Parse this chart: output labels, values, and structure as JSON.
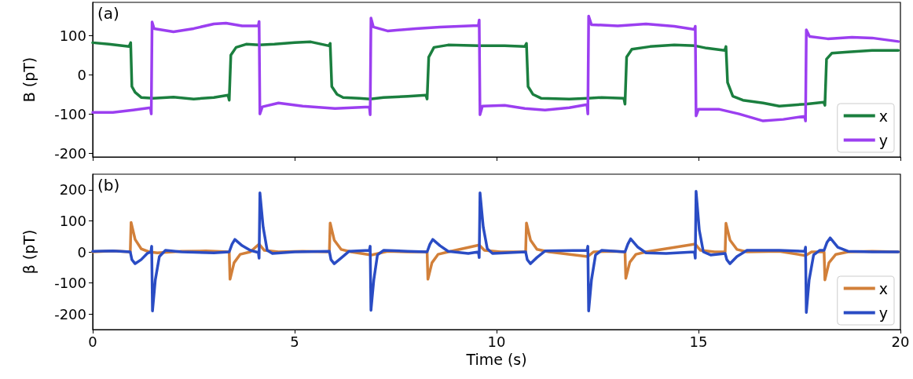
{
  "chart_data": [
    {
      "type": "line",
      "ylabel": "B (pT)",
      "annotations": [
        "(a)"
      ],
      "xlim": [
        0,
        20
      ],
      "xticks": [
        0,
        5,
        10,
        15,
        20
      ],
      "ylim": [
        -210,
        185
      ],
      "yticks": [
        -200,
        -100,
        0,
        100
      ],
      "tick_labels": "y",
      "legend": "bottom right",
      "marker": "none",
      "line_style": "solid",
      "series": [
        {
          "name": "x",
          "color": "#1b7f3f",
          "x": [
            0,
            0.4,
            0.9,
            0.94,
            0.97,
            1.05,
            1.2,
            1.5,
            2.0,
            2.5,
            3.0,
            3.35,
            3.38,
            3.42,
            3.55,
            3.8,
            4.12,
            4.5,
            5.0,
            5.4,
            5.85,
            5.88,
            5.92,
            6.05,
            6.2,
            6.6,
            6.87,
            7.2,
            7.8,
            8.25,
            8.28,
            8.32,
            8.45,
            8.8,
            9.57,
            10.2,
            10.7,
            10.74,
            10.78,
            10.9,
            11.1,
            11.8,
            12.26,
            12.6,
            13.15,
            13.18,
            13.22,
            13.35,
            13.8,
            14.4,
            14.92,
            15.2,
            15.65,
            15.68,
            15.72,
            15.85,
            16.1,
            16.6,
            17.0,
            17.65,
            18.1,
            18.13,
            18.17,
            18.3,
            18.7,
            19.3,
            19.95
          ],
          "values": [
            82,
            78,
            72,
            82,
            -30,
            -45,
            -58,
            -60,
            -57,
            -62,
            -58,
            -52,
            -65,
            50,
            70,
            78,
            76,
            78,
            82,
            84,
            74,
            80,
            -30,
            -50,
            -58,
            -60,
            -62,
            -58,
            -55,
            -52,
            -62,
            45,
            70,
            76,
            74,
            74,
            72,
            80,
            -30,
            -50,
            -60,
            -62,
            -60,
            -58,
            -60,
            -75,
            45,
            65,
            72,
            76,
            74,
            68,
            62,
            72,
            -20,
            -55,
            -65,
            -72,
            -80,
            -75,
            -70,
            -78,
            40,
            55,
            58,
            62,
            62
          ]
        },
        {
          "name": "y",
          "color": "#9b3ff0",
          "x": [
            0,
            0.5,
            1.0,
            1.43,
            1.45,
            1.47,
            1.52,
            2.0,
            2.5,
            3.0,
            3.3,
            3.7,
            4.1,
            4.12,
            4.14,
            4.2,
            4.6,
            5.2,
            6.0,
            6.85,
            6.87,
            6.89,
            6.95,
            7.3,
            8.0,
            8.6,
            9.55,
            9.57,
            9.59,
            9.65,
            10.2,
            10.7,
            11.2,
            11.8,
            12.24,
            12.26,
            12.28,
            12.35,
            13.0,
            13.7,
            14.4,
            14.9,
            14.92,
            14.94,
            15.0,
            15.5,
            16.0,
            16.6,
            17.1,
            17.63,
            17.65,
            17.67,
            17.75,
            18.2,
            18.8,
            19.3,
            19.95
          ],
          "values": [
            -96,
            -96,
            -90,
            -84,
            -100,
            135,
            118,
            110,
            118,
            130,
            132,
            125,
            125,
            136,
            -100,
            -82,
            -72,
            -80,
            -86,
            -82,
            -102,
            145,
            122,
            112,
            118,
            122,
            126,
            140,
            -102,
            -80,
            -78,
            -86,
            -90,
            -84,
            -76,
            -100,
            150,
            128,
            125,
            130,
            124,
            116,
            124,
            -105,
            -88,
            -88,
            -100,
            -118,
            -114,
            -106,
            -118,
            115,
            98,
            92,
            96,
            94,
            85
          ]
        }
      ]
    },
    {
      "type": "line",
      "ylabel": "β (pT)",
      "xlabel": "Time (s)",
      "annotations": [
        "(b)"
      ],
      "xlim": [
        0,
        20
      ],
      "xticks": [
        0,
        5,
        10,
        15,
        20
      ],
      "ylim": [
        -250,
        250
      ],
      "yticks": [
        -200,
        -100,
        0,
        100,
        200
      ],
      "legend": "bottom right",
      "marker": "none",
      "line_style": "solid",
      "series": [
        {
          "name": "x",
          "color": "#d2803a",
          "x": [
            0,
            0.5,
            0.93,
            0.95,
            1.05,
            1.2,
            1.4,
            1.6,
            2.2,
            2.8,
            3.38,
            3.4,
            3.5,
            3.65,
            3.9,
            4.12,
            4.25,
            4.6,
            5.2,
            5.86,
            5.88,
            5.98,
            6.15,
            6.4,
            6.9,
            7.3,
            7.8,
            8.28,
            8.3,
            8.4,
            8.55,
            8.8,
            9.57,
            9.7,
            10.1,
            10.72,
            10.74,
            10.84,
            11.0,
            11.3,
            12.26,
            12.4,
            12.9,
            13.18,
            13.2,
            13.3,
            13.45,
            13.7,
            14.92,
            15.05,
            15.4,
            15.66,
            15.68,
            15.78,
            15.95,
            16.2,
            17.0,
            17.65,
            17.8,
            18.11,
            18.13,
            18.23,
            18.4,
            18.7,
            19.3,
            19.95
          ],
          "values": [
            0,
            3,
            0,
            95,
            40,
            10,
            0,
            -3,
            2,
            3,
            0,
            -88,
            -35,
            -8,
            0,
            25,
            5,
            0,
            2,
            0,
            93,
            38,
            8,
            0,
            -10,
            2,
            0,
            0,
            -88,
            -35,
            -8,
            0,
            22,
            5,
            0,
            0,
            93,
            38,
            8,
            0,
            -15,
            0,
            2,
            0,
            -85,
            -33,
            -8,
            0,
            25,
            5,
            0,
            0,
            92,
            38,
            8,
            0,
            2,
            -12,
            0,
            0,
            -90,
            -35,
            -8,
            0,
            2,
            0
          ]
        },
        {
          "name": "y",
          "color": "#2a4cc4",
          "x": [
            0,
            0.5,
            0.93,
            0.97,
            1.05,
            1.2,
            1.35,
            1.44,
            1.46,
            1.48,
            1.55,
            1.65,
            1.8,
            2.2,
            3.0,
            3.38,
            3.45,
            3.52,
            3.7,
            3.9,
            4.1,
            4.12,
            4.14,
            4.22,
            4.32,
            4.45,
            5.0,
            5.86,
            5.9,
            5.98,
            6.15,
            6.35,
            6.85,
            6.87,
            6.89,
            6.96,
            7.05,
            7.2,
            7.8,
            8.28,
            8.35,
            8.42,
            8.6,
            8.8,
            9.3,
            9.55,
            9.57,
            9.59,
            9.67,
            9.77,
            9.9,
            10.72,
            10.76,
            10.84,
            11.0,
            11.2,
            12.24,
            12.26,
            12.28,
            12.35,
            12.45,
            12.6,
            13.18,
            13.25,
            13.32,
            13.5,
            13.7,
            14.2,
            14.9,
            14.92,
            14.94,
            15.02,
            15.12,
            15.3,
            15.66,
            15.7,
            15.78,
            15.95,
            16.2,
            17.0,
            17.63,
            17.65,
            17.67,
            17.74,
            17.85,
            18.0,
            18.11,
            18.18,
            18.26,
            18.45,
            18.7,
            19.3,
            19.95
          ],
          "values": [
            2,
            3,
            0,
            -25,
            -38,
            -25,
            -5,
            0,
            18,
            -190,
            -90,
            -15,
            5,
            0,
            -3,
            0,
            25,
            40,
            20,
            5,
            -2,
            -20,
            190,
            80,
            5,
            -5,
            0,
            2,
            -25,
            -38,
            -20,
            2,
            5,
            18,
            -188,
            -90,
            -10,
            5,
            2,
            0,
            25,
            40,
            20,
            2,
            -5,
            0,
            -18,
            190,
            80,
            10,
            -5,
            0,
            -25,
            -38,
            -18,
            3,
            5,
            18,
            -190,
            -90,
            -10,
            5,
            0,
            25,
            42,
            15,
            -3,
            -5,
            0,
            -20,
            195,
            70,
            0,
            -10,
            -5,
            -25,
            -38,
            -15,
            5,
            5,
            2,
            15,
            -195,
            -90,
            -10,
            5,
            5,
            30,
            45,
            15,
            2,
            0,
            0
          ]
        }
      ]
    }
  ]
}
